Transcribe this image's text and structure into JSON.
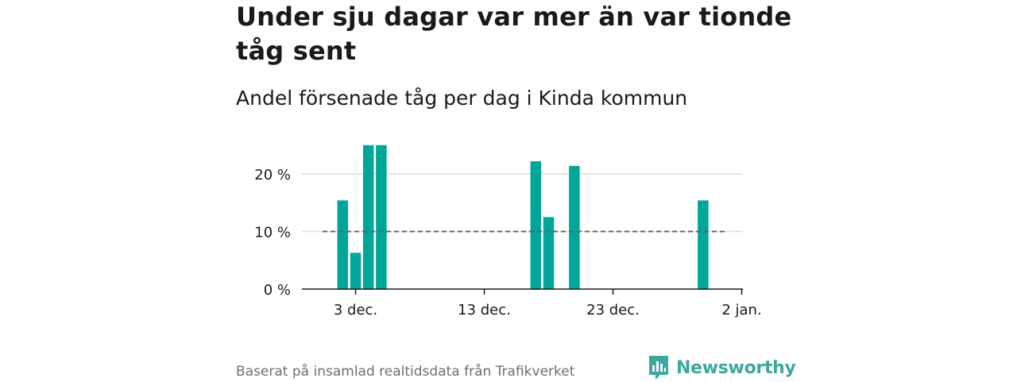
{
  "title": "Under sju dagar var mer än var tionde tåg sent",
  "subtitle": "Andel försenade tåg per dag i Kinda kommun",
  "source": "Baserat på insamlad realtidsdata från Trafikverket",
  "brand": "Newsworthy",
  "colors": {
    "bar": "#00a69a",
    "reference": "#666666",
    "grid": "#dddddd",
    "axis": "#1a1a1a"
  },
  "chart_data": {
    "type": "bar",
    "x_labels": [
      "3 dec.",
      "13 dec.",
      "23 dec.",
      "2 jan."
    ],
    "y_ticks": [
      "0 %",
      "10 %",
      "20 %"
    ],
    "ylim": [
      0,
      25
    ],
    "reference_line": 10,
    "grid": true,
    "bars": [
      {
        "date": "2 dec.",
        "value": 15.4
      },
      {
        "date": "3 dec.",
        "value": 6.3
      },
      {
        "date": "4 dec.",
        "value": 25.0
      },
      {
        "date": "5 dec.",
        "value": 25.0
      },
      {
        "date": "17 dec.",
        "value": 22.2
      },
      {
        "date": "18 dec.",
        "value": 12.5
      },
      {
        "date": "20 dec.",
        "value": 21.4
      },
      {
        "date": "30 dec.",
        "value": 15.4
      }
    ]
  }
}
